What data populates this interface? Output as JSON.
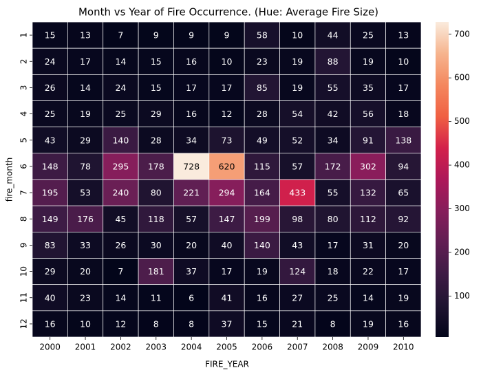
{
  "chart_data": {
    "type": "heatmap",
    "title": "Month vs Year of Fire Occurrence. (Hue: Average Fire Size)",
    "x_label": "FIRE_YEAR",
    "y_label": "fire_month",
    "x_categories": [
      2000,
      2001,
      2002,
      2003,
      2004,
      2005,
      2006,
      2007,
      2008,
      2009,
      2010
    ],
    "y_categories": [
      1,
      2,
      3,
      4,
      5,
      6,
      7,
      8,
      9,
      10,
      11,
      12
    ],
    "values": [
      [
        15,
        13,
        7,
        9,
        9,
        9,
        58,
        10,
        44,
        25,
        13
      ],
      [
        24,
        17,
        14,
        15,
        16,
        10,
        23,
        19,
        88,
        19,
        10
      ],
      [
        26,
        14,
        24,
        15,
        17,
        17,
        85,
        19,
        55,
        35,
        17
      ],
      [
        25,
        19,
        25,
        29,
        16,
        12,
        28,
        54,
        42,
        56,
        18
      ],
      [
        43,
        29,
        140,
        28,
        34,
        73,
        49,
        52,
        34,
        91,
        138
      ],
      [
        148,
        78,
        295,
        178,
        728,
        620,
        115,
        57,
        172,
        302,
        94
      ],
      [
        195,
        53,
        240,
        80,
        221,
        294,
        164,
        433,
        55,
        132,
        65
      ],
      [
        149,
        176,
        45,
        118,
        57,
        147,
        199,
        98,
        80,
        112,
        92
      ],
      [
        83,
        33,
        26,
        30,
        20,
        40,
        140,
        43,
        17,
        31,
        20
      ],
      [
        29,
        20,
        7,
        181,
        37,
        17,
        19,
        124,
        18,
        22,
        17
      ],
      [
        40,
        23,
        14,
        11,
        6,
        41,
        16,
        27,
        25,
        14,
        19
      ],
      [
        16,
        10,
        12,
        8,
        8,
        37,
        15,
        21,
        8,
        19,
        16
      ]
    ],
    "zlim": [
      6,
      728
    ],
    "zticks": [
      100,
      200,
      300,
      400,
      500,
      600,
      700
    ],
    "colors": [
      "#03051a",
      "#1f1431",
      "#3e1b45",
      "#611f53",
      "#861e5b",
      "#ad1759",
      "#d3214b",
      "#f06043",
      "#f4875e",
      "#f6b48e",
      "#faebdd"
    ]
  }
}
